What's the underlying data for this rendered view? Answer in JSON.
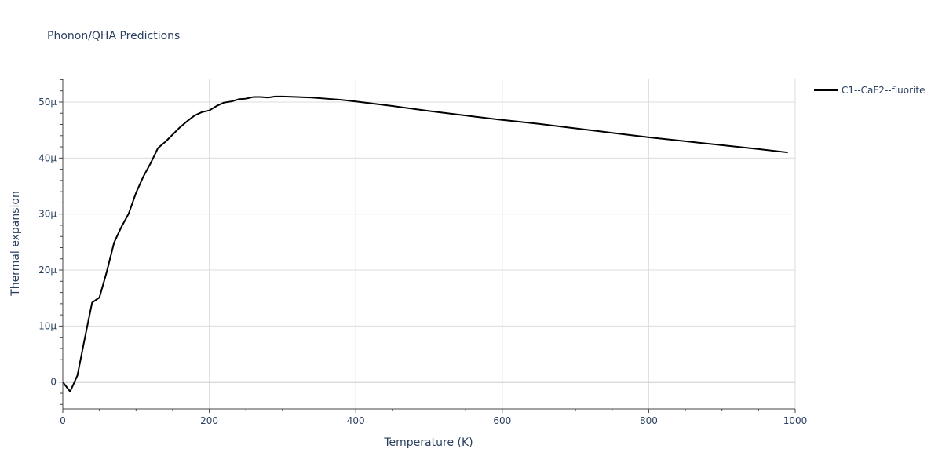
{
  "chart_data": {
    "type": "line",
    "title": "Phonon/QHA Predictions",
    "xlabel": "Temperature (K)",
    "ylabel": "Thermal expansion",
    "xlim": [
      0,
      1000
    ],
    "ylim": [
      -4.8e-06,
      5.42e-05
    ],
    "x_ticks": [
      0,
      200,
      400,
      600,
      800,
      1000
    ],
    "x_tick_labels": [
      "0",
      "200",
      "400",
      "600",
      "800",
      "1000"
    ],
    "y_ticks": [
      0,
      1e-05,
      2e-05,
      3e-05,
      4e-05,
      5e-05
    ],
    "y_tick_labels": [
      "0",
      "10µ",
      "20µ",
      "30µ",
      "40µ",
      "50µ"
    ],
    "grid": true,
    "legend_position": "top-right",
    "colors": {
      "series": "#000000",
      "grid": "#dcdcdc",
      "zeroline": "#cccccc",
      "axis": "#444444"
    },
    "series": [
      {
        "name": "C1--CaF2--fluorite",
        "x": [
          0,
          10,
          20,
          30,
          40,
          50,
          60,
          70,
          80,
          90,
          100,
          110,
          120,
          130,
          140,
          150,
          160,
          170,
          180,
          190,
          200,
          210,
          220,
          230,
          240,
          250,
          260,
          270,
          280,
          290,
          300,
          320,
          340,
          360,
          380,
          400,
          450,
          500,
          550,
          600,
          650,
          700,
          750,
          800,
          850,
          900,
          950,
          990
        ],
        "y": [
          0,
          -1.7e-06,
          1.2e-06,
          7.8e-06,
          1.42e-05,
          1.51e-05,
          1.97e-05,
          2.49e-05,
          2.77e-05,
          3.01e-05,
          3.38e-05,
          3.67e-05,
          3.91e-05,
          4.18e-05,
          4.29e-05,
          4.42e-05,
          4.55e-05,
          4.66e-05,
          4.76e-05,
          4.82e-05,
          4.85e-05,
          4.93e-05,
          4.99e-05,
          5.01e-05,
          5.05e-05,
          5.06e-05,
          5.09e-05,
          5.09e-05,
          5.08e-05,
          5.1e-05,
          5.1e-05,
          5.09e-05,
          5.08e-05,
          5.06e-05,
          5.04e-05,
          5.01e-05,
          4.93e-05,
          4.84e-05,
          4.76e-05,
          4.68e-05,
          4.61e-05,
          4.53e-05,
          4.45e-05,
          4.37e-05,
          4.3e-05,
          4.23e-05,
          4.16e-05,
          4.1e-05
        ]
      }
    ]
  }
}
